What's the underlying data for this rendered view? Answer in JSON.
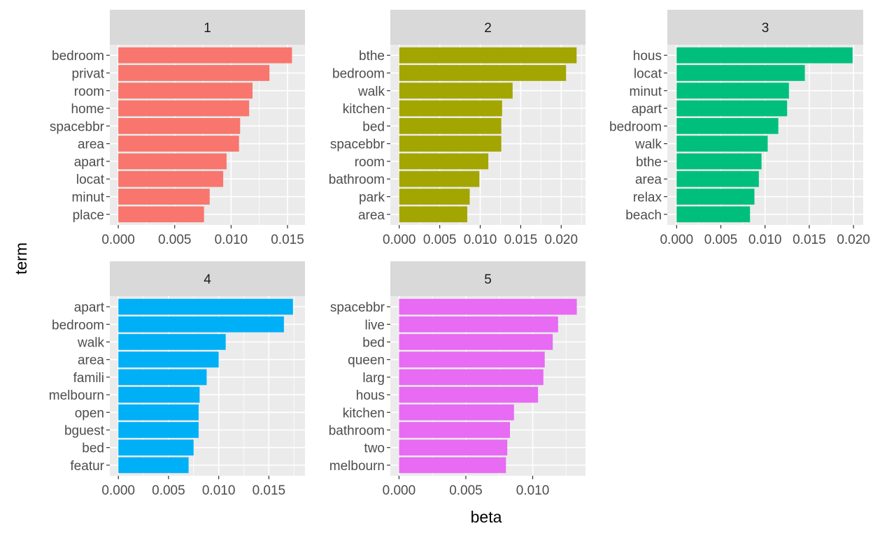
{
  "chart_data": {
    "type": "bar",
    "orientation": "horizontal",
    "xlabel": "beta",
    "ylabel": "term",
    "grid": true,
    "facets": [
      {
        "strip": "1",
        "color": "#F8766D",
        "categories": [
          "bedroom",
          "privat",
          "room",
          "home",
          "spacebbr",
          "area",
          "apart",
          "locat",
          "minut",
          "place"
        ],
        "values": [
          0.0154,
          0.0134,
          0.0119,
          0.0116,
          0.0108,
          0.0107,
          0.0096,
          0.0093,
          0.0081,
          0.0076
        ],
        "xlim": [
          -0.00075,
          0.01655
        ],
        "xticks": [
          "0.000",
          "0.005",
          "0.010",
          "0.015"
        ],
        "xtick_values": [
          0,
          0.005,
          0.01,
          0.015
        ]
      },
      {
        "strip": "2",
        "color": "#A3A500",
        "categories": [
          "bthe",
          "bedroom",
          "walk",
          "kitchen",
          "bed",
          "spacebbr",
          "room",
          "bathroom",
          "park",
          "area"
        ],
        "values": [
          0.0219,
          0.0206,
          0.014,
          0.0127,
          0.0126,
          0.0126,
          0.011,
          0.0099,
          0.0087,
          0.0084
        ],
        "xlim": [
          -0.0011,
          0.023
        ],
        "xticks": [
          "0.000",
          "0.005",
          "0.010",
          "0.015",
          "0.020"
        ],
        "xtick_values": [
          0,
          0.005,
          0.01,
          0.015,
          0.02
        ]
      },
      {
        "strip": "3",
        "color": "#00BF7D",
        "categories": [
          "hous",
          "locat",
          "minut",
          "apart",
          "bedroom",
          "walk",
          "bthe",
          "area",
          "relax",
          "beach"
        ],
        "values": [
          0.0199,
          0.0145,
          0.0127,
          0.0125,
          0.0115,
          0.0103,
          0.0096,
          0.0093,
          0.0088,
          0.0083
        ],
        "xlim": [
          -0.00105,
          0.0211
        ],
        "xticks": [
          "0.000",
          "0.005",
          "0.010",
          "0.015",
          "0.020"
        ],
        "xtick_values": [
          0,
          0.005,
          0.01,
          0.015,
          0.02
        ]
      },
      {
        "strip": "4",
        "color": "#00B0F6",
        "categories": [
          "apart",
          "bedroom",
          "walk",
          "area",
          "famili",
          "melbourn",
          "open",
          "bguest",
          "bed",
          "featur"
        ],
        "values": [
          0.0174,
          0.0165,
          0.0107,
          0.01,
          0.0088,
          0.0081,
          0.008,
          0.008,
          0.0075,
          0.007
        ],
        "xlim": [
          -0.00085,
          0.0186
        ],
        "xticks": [
          "0.000",
          "0.005",
          "0.010",
          "0.015"
        ],
        "xtick_values": [
          0,
          0.005,
          0.01,
          0.015
        ]
      },
      {
        "strip": "5",
        "color": "#E76BF3",
        "categories": [
          "spacebbr",
          "live",
          "bed",
          "queen",
          "larg",
          "hous",
          "kitchen",
          "bathroom",
          "two",
          "melbourn"
        ],
        "values": [
          0.0133,
          0.0119,
          0.0115,
          0.0109,
          0.0108,
          0.0104,
          0.0086,
          0.0083,
          0.0081,
          0.008
        ],
        "xlim": [
          -0.00065,
          0.01395
        ],
        "xticks": [
          "0.000",
          "0.005",
          "0.010"
        ],
        "xtick_values": [
          0,
          0.005,
          0.01
        ]
      }
    ]
  }
}
